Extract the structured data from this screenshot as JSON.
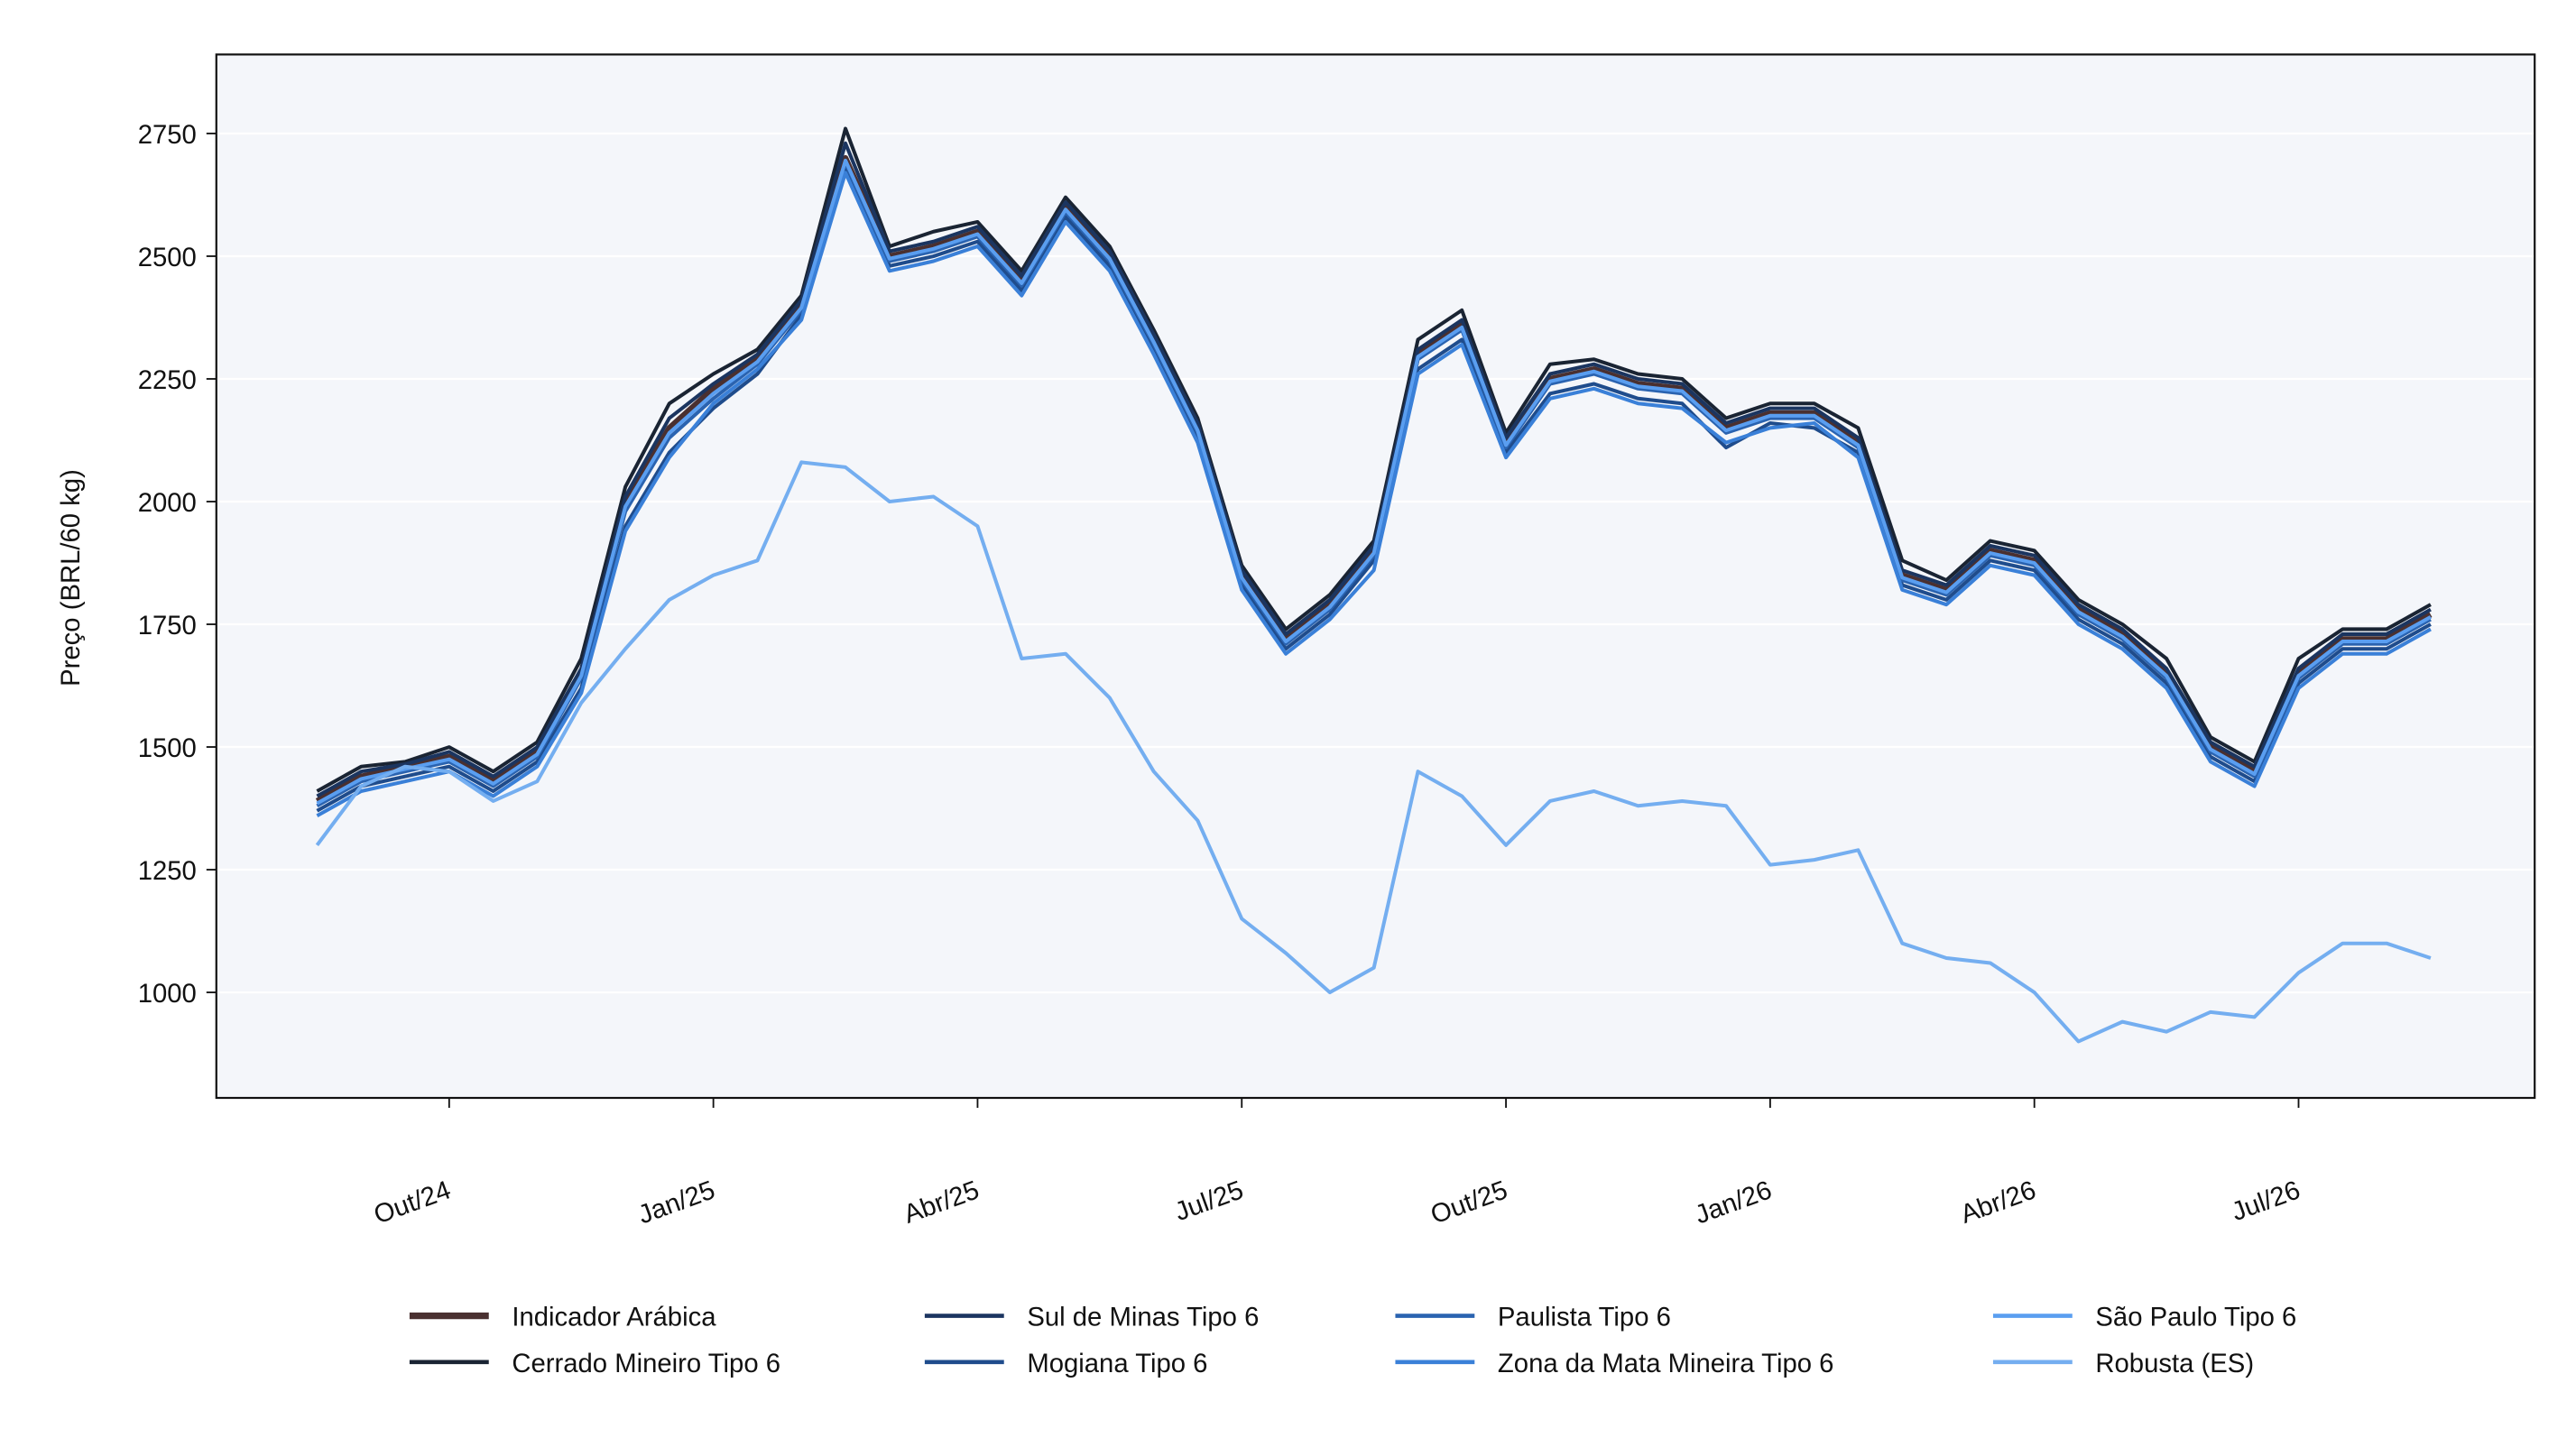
{
  "chart_data": {
    "type": "line",
    "ylabel": "Preço (BRL/60 kg)",
    "categories": [
      null,
      null,
      null,
      "Out/24",
      null,
      null,
      null,
      null,
      null,
      "Jan/25",
      null,
      null,
      null,
      null,
      null,
      "Abr/25",
      null,
      null,
      null,
      null,
      null,
      "Jul/25",
      null,
      null,
      null,
      null,
      null,
      "Out/25",
      null,
      null,
      null,
      null,
      null,
      "Jan/26",
      null,
      null,
      null,
      null,
      null,
      "Abr/26",
      null,
      null,
      null,
      null,
      null,
      "Jul/26",
      null,
      null,
      null
    ],
    "ylim": [
      785,
      2911
    ],
    "yticks": [
      1000,
      1250,
      1500,
      1750,
      2000,
      2250,
      2500,
      2750
    ],
    "grid": true,
    "legend": "bottom",
    "series": [
      {
        "name": "Indicador Arábica",
        "color": "#4a3030",
        "values": [
          1390,
          1440,
          1460,
          1480,
          1430,
          1490,
          1650,
          2000,
          2150,
          2230,
          2290,
          2400,
          2700,
          2500,
          2520,
          2550,
          2450,
          2600,
          2500,
          2330,
          2150,
          1850,
          1720,
          1790,
          1900,
          2300,
          2360,
          2120,
          2250,
          2270,
          2240,
          2230,
          2150,
          2180,
          2180,
          2120,
          1850,
          1820,
          1900,
          1880,
          1780,
          1730,
          1650,
          1500,
          1450,
          1650,
          1720,
          1720,
          1770
        ]
      },
      {
        "name": "Cerrado Mineiro Tipo 6",
        "color": "#1a2433",
        "values": [
          1410,
          1460,
          1470,
          1500,
          1450,
          1510,
          1680,
          2030,
          2200,
          2260,
          2310,
          2420,
          2760,
          2520,
          2550,
          2570,
          2470,
          2620,
          2520,
          2350,
          2170,
          1870,
          1740,
          1810,
          1920,
          2330,
          2390,
          2140,
          2280,
          2290,
          2260,
          2250,
          2170,
          2200,
          2200,
          2150,
          1880,
          1840,
          1920,
          1900,
          1800,
          1750,
          1680,
          1520,
          1470,
          1680,
          1740,
          1740,
          1790
        ]
      },
      {
        "name": "Sul de Minas Tipo 6",
        "color": "#1b3560",
        "values": [
          1400,
          1450,
          1465,
          1490,
          1440,
          1500,
          1660,
          2010,
          2170,
          2240,
          2300,
          2410,
          2730,
          2510,
          2530,
          2560,
          2460,
          2610,
          2510,
          2340,
          2160,
          1860,
          1730,
          1800,
          1910,
          2310,
          2370,
          2130,
          2260,
          2280,
          2250,
          2240,
          2160,
          2190,
          2190,
          2130,
          1860,
          1830,
          1910,
          1890,
          1790,
          1740,
          1660,
          1510,
          1460,
          1660,
          1730,
          1730,
          1780
        ]
      },
      {
        "name": "Mogiana Tipo 6",
        "color": "#1f4c8c",
        "values": [
          1370,
          1420,
          1440,
          1460,
          1410,
          1470,
          1620,
          1950,
          2100,
          2190,
          2260,
          2380,
          2680,
          2480,
          2500,
          2530,
          2430,
          2580,
          2480,
          2310,
          2130,
          1830,
          1700,
          1770,
          1880,
          2270,
          2330,
          2100,
          2220,
          2240,
          2210,
          2200,
          2110,
          2160,
          2150,
          2100,
          1830,
          1800,
          1880,
          1860,
          1760,
          1710,
          1630,
          1480,
          1430,
          1630,
          1700,
          1700,
          1750
        ]
      },
      {
        "name": "Paulista Tipo 6",
        "color": "#2a63b0",
        "values": [
          1380,
          1430,
          1450,
          1470,
          1420,
          1480,
          1640,
          1980,
          2130,
          2210,
          2280,
          2390,
          2690,
          2490,
          2510,
          2540,
          2440,
          2590,
          2490,
          2320,
          2140,
          1840,
          1710,
          1780,
          1890,
          2290,
          2350,
          2110,
          2240,
          2260,
          2230,
          2220,
          2140,
          2170,
          2170,
          2110,
          1840,
          1810,
          1890,
          1870,
          1770,
          1720,
          1640,
          1490,
          1440,
          1640,
          1710,
          1710,
          1760
        ]
      },
      {
        "name": "Zona da Mata Mineira Tipo 6",
        "color": "#3a80d8",
        "values": [
          1360,
          1410,
          1430,
          1450,
          1400,
          1460,
          1610,
          1940,
          2090,
          2200,
          2270,
          2370,
          2670,
          2470,
          2490,
          2520,
          2420,
          2570,
          2470,
          2300,
          2120,
          1820,
          1690,
          1760,
          1860,
          2260,
          2320,
          2090,
          2210,
          2230,
          2200,
          2190,
          2120,
          2150,
          2160,
          2090,
          1820,
          1790,
          1870,
          1850,
          1750,
          1700,
          1620,
          1470,
          1420,
          1620,
          1690,
          1690,
          1740
        ]
      },
      {
        "name": "São Paulo Tipo 6",
        "color": "#5a9ef0",
        "values": [
          1385,
          1435,
          1455,
          1475,
          1425,
          1485,
          1645,
          1990,
          2140,
          2220,
          2285,
          2395,
          2695,
          2495,
          2515,
          2545,
          2445,
          2595,
          2495,
          2325,
          2145,
          1845,
          1715,
          1785,
          1895,
          2295,
          2355,
          2115,
          2245,
          2265,
          2235,
          2225,
          2145,
          2175,
          2175,
          2115,
          1845,
          1815,
          1895,
          1875,
          1775,
          1725,
          1645,
          1495,
          1445,
          1645,
          1715,
          1715,
          1765
        ]
      },
      {
        "name": "Robusta (ES)",
        "color": "#74aef0",
        "values": [
          1300,
          1420,
          1460,
          1450,
          1390,
          1430,
          1590,
          1700,
          1800,
          1850,
          1880,
          2080,
          2070,
          2000,
          2010,
          1950,
          1680,
          1690,
          1600,
          1450,
          1350,
          1150,
          1080,
          1000,
          1050,
          1450,
          1400,
          1300,
          1390,
          1410,
          1380,
          1390,
          1380,
          1260,
          1270,
          1290,
          1100,
          1070,
          1060,
          1000,
          900,
          940,
          920,
          960,
          950,
          1040,
          1100,
          1100,
          1070
        ]
      }
    ]
  }
}
